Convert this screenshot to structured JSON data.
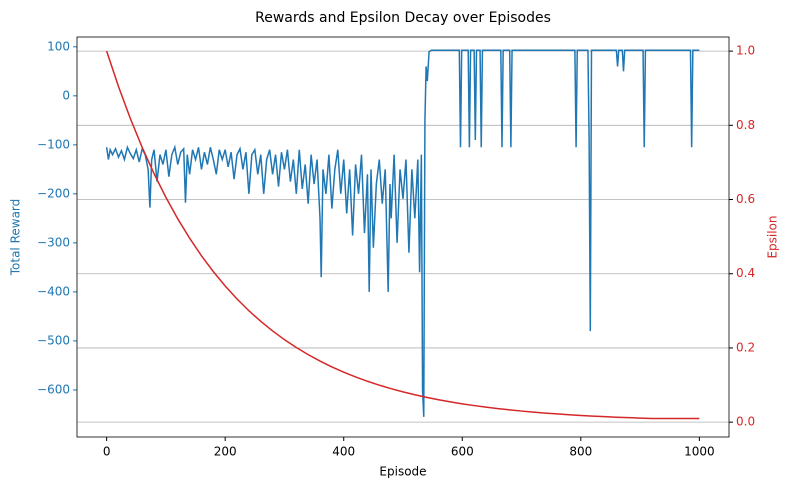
{
  "chart_data": {
    "type": "line",
    "title": "Rewards and Epsilon Decay over Episodes",
    "x_label": "Episode",
    "y_label": "Total Reward",
    "y2_label": "Epsilon",
    "xlim": [
      -50,
      1050
    ],
    "xticks": [
      0,
      200,
      400,
      600,
      800,
      1000
    ],
    "ylim": [
      -696,
      120
    ],
    "yticks": [
      {
        "value": -600,
        "label": "−600"
      },
      {
        "value": -500,
        "label": "−500"
      },
      {
        "value": -400,
        "label": "−400"
      },
      {
        "value": -300,
        "label": "−300"
      },
      {
        "value": -200,
        "label": "−200"
      },
      {
        "value": -100,
        "label": "−100"
      },
      0,
      100
    ],
    "y2lim": [
      -0.04,
      1.038
    ],
    "y2ticks": [
      {
        "value": 0,
        "label": "0.0"
      },
      0.2,
      0.4,
      0.6,
      0.8,
      {
        "value": 1,
        "label": "1.0"
      }
    ],
    "grid": "y2",
    "series": [
      {
        "name": "Total Reward",
        "color": "#1f77b4",
        "axis": "y",
        "x": [
          0,
          3,
          6,
          10,
          15,
          20,
          25,
          30,
          35,
          40,
          45,
          50,
          55,
          60,
          65,
          70,
          73,
          76,
          80,
          85,
          90,
          95,
          100,
          105,
          110,
          115,
          120,
          125,
          130,
          133,
          136,
          140,
          145,
          150,
          155,
          160,
          165,
          170,
          175,
          180,
          185,
          190,
          195,
          200,
          205,
          210,
          215,
          220,
          225,
          230,
          235,
          240,
          245,
          250,
          255,
          260,
          265,
          270,
          275,
          280,
          285,
          290,
          295,
          300,
          305,
          310,
          315,
          320,
          325,
          330,
          335,
          340,
          345,
          350,
          355,
          360,
          362,
          365,
          370,
          375,
          380,
          385,
          390,
          395,
          400,
          405,
          410,
          415,
          420,
          425,
          430,
          435,
          440,
          443,
          446,
          450,
          455,
          460,
          465,
          470,
          475,
          478,
          480,
          485,
          490,
          495,
          500,
          505,
          510,
          515,
          520,
          525,
          528,
          531,
          533,
          535,
          537,
          539,
          541,
          544,
          548,
          560,
          595,
          597,
          599,
          610,
          612,
          614,
          620,
          622,
          624,
          630,
          632,
          634,
          665,
          667,
          669,
          680,
          682,
          684,
          790,
          792,
          794,
          812,
          814,
          816,
          818,
          860,
          862,
          864,
          870,
          872,
          874,
          905,
          907,
          909,
          985,
          987,
          989,
          1000
        ],
        "values": [
          -105,
          -130,
          -110,
          -120,
          -108,
          -125,
          -112,
          -130,
          -105,
          -118,
          -128,
          -110,
          -135,
          -108,
          -120,
          -150,
          -228,
          -130,
          -110,
          -175,
          -120,
          -140,
          -110,
          -165,
          -120,
          -105,
          -140,
          -115,
          -108,
          -218,
          -120,
          -160,
          -110,
          -130,
          -105,
          -150,
          -115,
          -140,
          -105,
          -130,
          -160,
          -110,
          -130,
          -110,
          -145,
          -115,
          -170,
          -120,
          -108,
          -150,
          -115,
          -200,
          -120,
          -110,
          -160,
          -120,
          -200,
          -130,
          -110,
          -160,
          -120,
          -185,
          -115,
          -150,
          -110,
          -175,
          -130,
          -200,
          -110,
          -190,
          -140,
          -220,
          -120,
          -180,
          -130,
          -250,
          -370,
          -150,
          -200,
          -120,
          -230,
          -150,
          -110,
          -200,
          -130,
          -240,
          -150,
          -285,
          -140,
          -200,
          -120,
          -280,
          -160,
          -400,
          -150,
          -310,
          -180,
          -130,
          -220,
          -150,
          -400,
          -180,
          -250,
          -120,
          -300,
          -150,
          -210,
          -130,
          -320,
          -150,
          -250,
          -130,
          -360,
          -120,
          -600,
          -655,
          -50,
          60,
          30,
          90,
          93,
          93,
          93,
          -105,
          93,
          93,
          -105,
          93,
          93,
          -90,
          93,
          93,
          -105,
          93,
          93,
          -105,
          93,
          93,
          -105,
          93,
          93,
          -105,
          93,
          93,
          -90,
          -480,
          93,
          93,
          60,
          93,
          93,
          50,
          93,
          93,
          -105,
          93,
          93,
          -105,
          93,
          93
        ]
      },
      {
        "name": "Epsilon",
        "color": "#d62728",
        "axis": "y2",
        "x": [
          0,
          20,
          40,
          60,
          80,
          100,
          120,
          140,
          160,
          180,
          200,
          220,
          240,
          260,
          280,
          300,
          320,
          340,
          360,
          380,
          400,
          420,
          440,
          460,
          480,
          500,
          520,
          540,
          560,
          580,
          600,
          620,
          640,
          660,
          680,
          700,
          720,
          740,
          760,
          780,
          800,
          820,
          840,
          860,
          880,
          900,
          920,
          940,
          960,
          980,
          1000
        ],
        "values": [
          1.0,
          0.9046,
          0.8183,
          0.7403,
          0.6697,
          0.6058,
          0.548,
          0.4957,
          0.4484,
          0.4057,
          0.367,
          0.332,
          0.3003,
          0.2717,
          0.2458,
          0.2223,
          0.2011,
          0.1819,
          0.1646,
          0.1489,
          0.1347,
          0.1218,
          0.1102,
          0.0997,
          0.0902,
          0.0816,
          0.0738,
          0.0668,
          0.0604,
          0.0546,
          0.0494,
          0.0447,
          0.0404,
          0.0366,
          0.0331,
          0.0299,
          0.0271,
          0.0245,
          0.0222,
          0.02,
          0.0181,
          0.0164,
          0.0148,
          0.0134,
          0.0122,
          0.011,
          0.01,
          0.01,
          0.01,
          0.01,
          0.01
        ]
      }
    ]
  }
}
